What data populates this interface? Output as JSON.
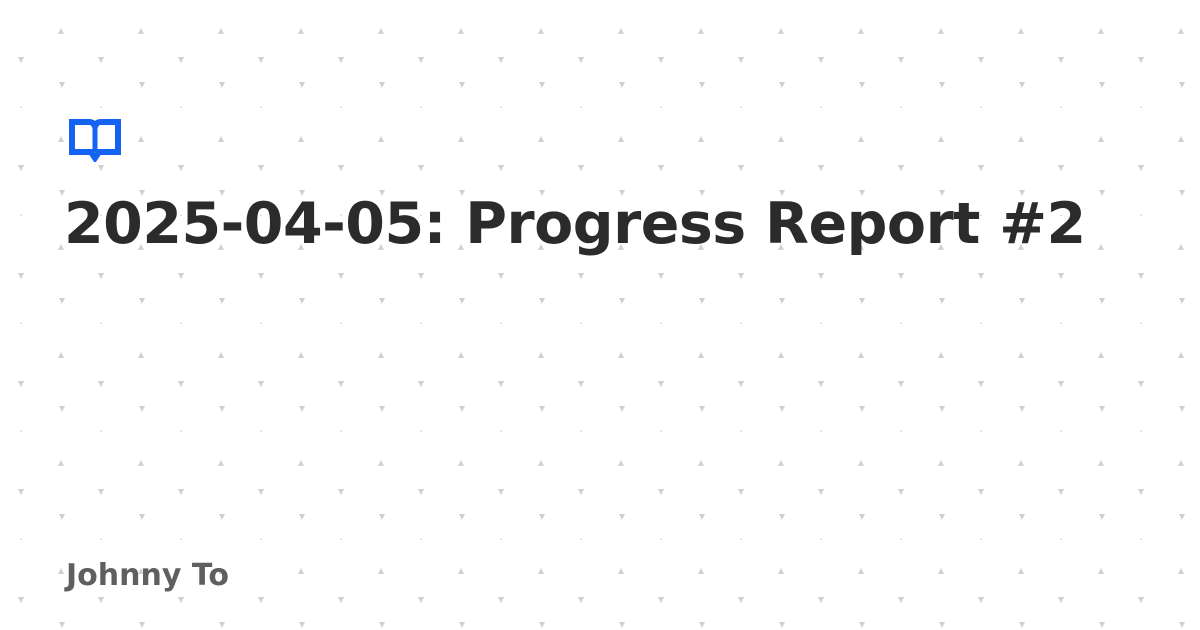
{
  "card": {
    "icon": "open-book-icon",
    "title": "2025-04-05: Progress Report #2",
    "author": "Johnny To"
  },
  "colors": {
    "background": "#ffffff",
    "accent": "#1463f3",
    "title": "#2b2b2b",
    "author": "#5f5f5f",
    "pattern": "#d0d0d0"
  }
}
